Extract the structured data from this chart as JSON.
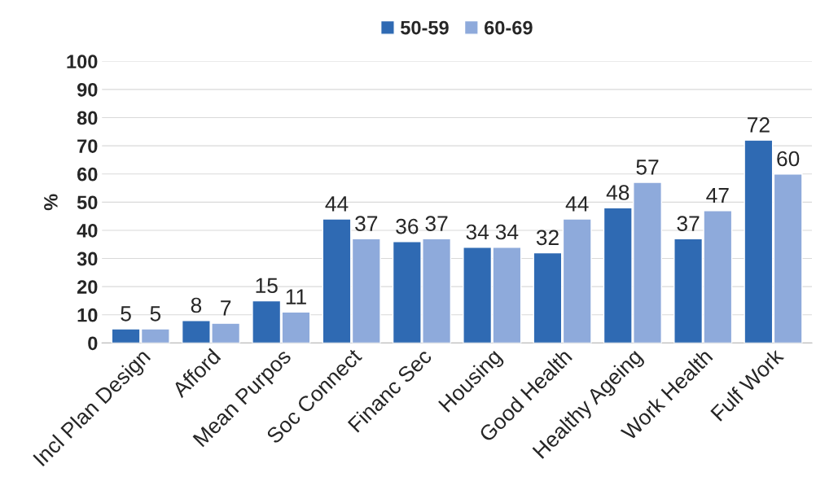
{
  "chart_data": {
    "type": "bar",
    "ylabel": "%",
    "categories": [
      "Incl Plan Design",
      "Afford",
      "Mean Purpos",
      "Soc Connect",
      "Financ Sec",
      "Housing",
      "Good Health",
      "Healthy Ageing",
      "Work Health",
      "Fulf Work"
    ],
    "series": [
      {
        "name": "50-59",
        "color": "#2f6ab3",
        "values": [
          5,
          8,
          15,
          44,
          36,
          34,
          32,
          48,
          37,
          72
        ]
      },
      {
        "name": "60-69",
        "color": "#8eaadb",
        "values": [
          5,
          7,
          11,
          37,
          37,
          34,
          44,
          57,
          47,
          60
        ]
      }
    ],
    "ylim": [
      0,
      100
    ],
    "yticks": [
      0,
      10,
      20,
      30,
      40,
      50,
      60,
      70,
      80,
      90,
      100
    ],
    "grid": "y",
    "legend": "top",
    "data_labels": true
  }
}
